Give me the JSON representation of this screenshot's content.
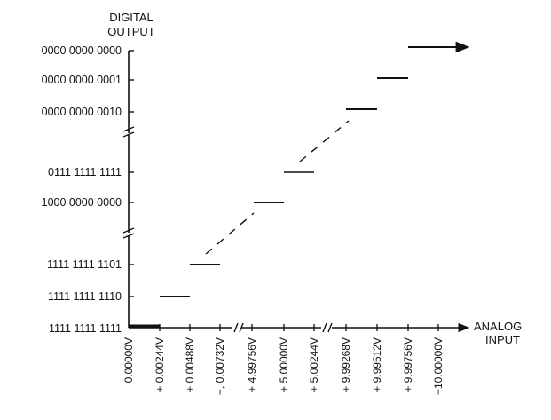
{
  "y_axis": {
    "title_line1": "DIGITAL",
    "title_line2": "OUTPUT",
    "codes": [
      "0000 0000 0000",
      "0000 0000 0001",
      "0000 0000 0010",
      "0111 1111 1111",
      "1000 0000 0000",
      "1111 1111 1101",
      "1111 1111 1110",
      "1111 1111 1111"
    ]
  },
  "x_axis": {
    "title_line1": "ANALOG",
    "title_line2": "INPUT",
    "voltages": [
      "0.00000V",
      "+ 0.00244V",
      "+ 0.00488V",
      "+, 0.00732V",
      "+ 4.99756V",
      "+ 5.00000V",
      "+ 5.00244V",
      "+ 9.99268V",
      "+ 9.99512V",
      "+ 9.99756V",
      "+10.00000V"
    ]
  },
  "colors": {
    "ink": "#111111",
    "background": "#ffffff"
  }
}
